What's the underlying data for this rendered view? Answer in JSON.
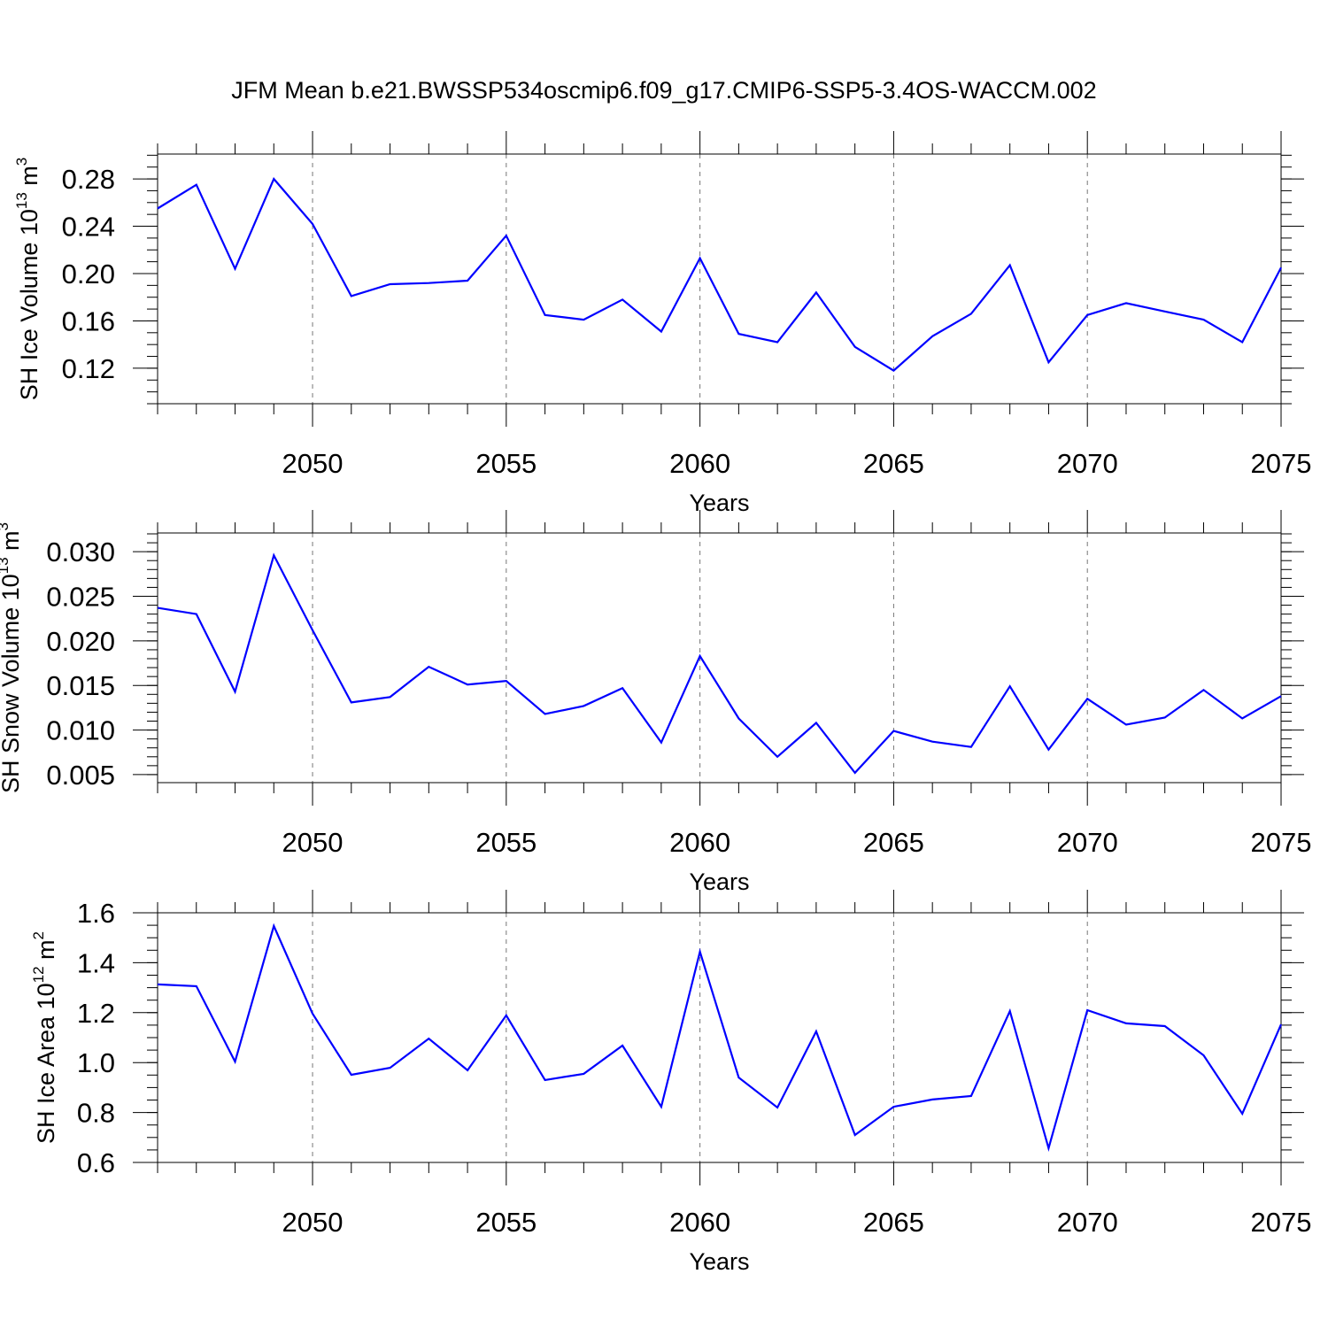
{
  "title": "JFM Mean b.e21.BWSSP534oscmip6.f09_g17.CMIP6-SSP5-3.4OS-WACCM.002",
  "line_color": "#0000ff",
  "chart_data": [
    {
      "type": "line",
      "xlabel": "Years",
      "ylabel": {
        "text": "SH Ice Volume 10",
        "exp": "13",
        "unit": " m",
        "unit_exp": "3"
      },
      "xlim": [
        2046,
        2075
      ],
      "ylim": [
        0.09,
        0.301
      ],
      "xticks": [
        2050,
        2055,
        2060,
        2065,
        2070,
        2075
      ],
      "xtick_labels": [
        "2050",
        "2055",
        "2060",
        "2065",
        "2070",
        "2075"
      ],
      "yticks": [
        0.12,
        0.16,
        0.2,
        0.24,
        0.28
      ],
      "ytick_labels": [
        "0.12",
        "0.16",
        "0.20",
        "0.24",
        "0.28"
      ],
      "yminor_step": 0.01,
      "grid": "dashed vertical at major x ticks",
      "x": [
        2046,
        2047,
        2048,
        2049,
        2050,
        2051,
        2052,
        2053,
        2054,
        2055,
        2056,
        2057,
        2058,
        2059,
        2060,
        2061,
        2062,
        2063,
        2064,
        2065,
        2066,
        2067,
        2068,
        2069,
        2070,
        2071,
        2072,
        2073,
        2074,
        2075
      ],
      "values": [
        0.255,
        0.275,
        0.204,
        0.28,
        0.242,
        0.181,
        0.191,
        0.192,
        0.194,
        0.232,
        0.165,
        0.161,
        0.178,
        0.151,
        0.213,
        0.149,
        0.142,
        0.184,
        0.138,
        0.118,
        0.147,
        0.166,
        0.207,
        0.125,
        0.165,
        0.175,
        0.168,
        0.161,
        0.142,
        0.205
      ]
    },
    {
      "type": "line",
      "xlabel": "Years",
      "ylabel": {
        "text": "SH Snow Volume 10",
        "exp": "13",
        "unit": " m",
        "unit_exp": "3"
      },
      "xlim": [
        2046,
        2075
      ],
      "ylim": [
        0.0041,
        0.0321
      ],
      "xticks": [
        2050,
        2055,
        2060,
        2065,
        2070,
        2075
      ],
      "xtick_labels": [
        "2050",
        "2055",
        "2060",
        "2065",
        "2070",
        "2075"
      ],
      "yticks": [
        0.005,
        0.01,
        0.015,
        0.02,
        0.025,
        0.03
      ],
      "ytick_labels": [
        "0.005",
        "0.010",
        "0.015",
        "0.020",
        "0.025",
        "0.030"
      ],
      "yminor_step": 0.001,
      "grid": "dashed vertical at major x ticks",
      "x": [
        2046,
        2047,
        2048,
        2049,
        2050,
        2051,
        2052,
        2053,
        2054,
        2055,
        2056,
        2057,
        2058,
        2059,
        2060,
        2061,
        2062,
        2063,
        2064,
        2065,
        2066,
        2067,
        2068,
        2069,
        2070,
        2071,
        2072,
        2073,
        2074,
        2075
      ],
      "values": [
        0.0237,
        0.023,
        0.0143,
        0.0296,
        0.0212,
        0.0131,
        0.0137,
        0.0171,
        0.0151,
        0.0155,
        0.0118,
        0.0127,
        0.0147,
        0.0086,
        0.0183,
        0.0113,
        0.007,
        0.0108,
        0.0052,
        0.0099,
        0.0087,
        0.0081,
        0.0149,
        0.0078,
        0.0135,
        0.0106,
        0.0114,
        0.0145,
        0.0113,
        0.0138
      ]
    },
    {
      "type": "line",
      "xlabel": "Years",
      "ylabel": {
        "text": "SH Ice Area 10",
        "exp": "12",
        "unit": " m",
        "unit_exp": "2"
      },
      "xlim": [
        2046,
        2075
      ],
      "ylim": [
        0.6,
        1.6
      ],
      "xticks": [
        2050,
        2055,
        2060,
        2065,
        2070,
        2075
      ],
      "xtick_labels": [
        "2050",
        "2055",
        "2060",
        "2065",
        "2070",
        "2075"
      ],
      "yticks": [
        0.6,
        0.8,
        1.0,
        1.2,
        1.4,
        1.6
      ],
      "ytick_labels": [
        "0.6",
        "0.8",
        "1.0",
        "1.2",
        "1.4",
        "1.6"
      ],
      "yminor_step": 0.05,
      "grid": "dashed vertical at major x ticks",
      "x": [
        2046,
        2047,
        2048,
        2049,
        2050,
        2051,
        2052,
        2053,
        2054,
        2055,
        2056,
        2057,
        2058,
        2059,
        2060,
        2061,
        2062,
        2063,
        2064,
        2065,
        2066,
        2067,
        2068,
        2069,
        2070,
        2071,
        2072,
        2073,
        2074,
        2075
      ],
      "values": [
        1.313,
        1.306,
        1.004,
        1.547,
        1.196,
        0.951,
        0.979,
        1.096,
        0.969,
        1.189,
        0.93,
        0.955,
        1.068,
        0.823,
        1.444,
        0.94,
        0.82,
        1.125,
        0.71,
        0.823,
        0.852,
        0.866,
        1.206,
        0.657,
        1.21,
        1.157,
        1.146,
        1.029,
        0.795,
        1.153
      ]
    }
  ]
}
